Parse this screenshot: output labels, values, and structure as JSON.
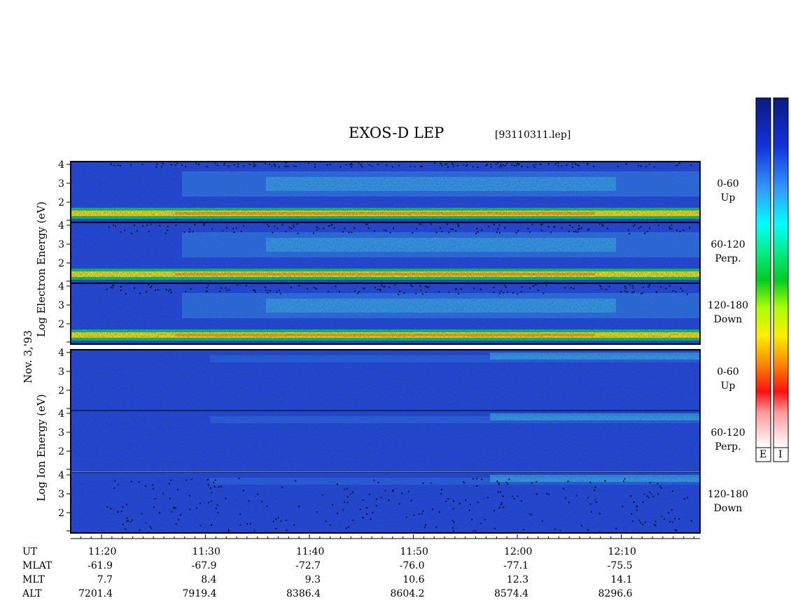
{
  "chart_data": {
    "type": "heatmap",
    "title": "EXOS-D LEP",
    "file": "[93110311.lep]",
    "date_label": "Nov. 3,'93",
    "electron_ylabel": "Log   Electron   Energy  (eV)",
    "ion_ylabel": "Log   Ion   Energy  (eV)",
    "y_ticks": [
      "2",
      "3",
      "4"
    ],
    "panels": [
      {
        "species": "Electron",
        "pitch_range": "0-60",
        "direction": "Up"
      },
      {
        "species": "Electron",
        "pitch_range": "60-120",
        "direction": "Perp."
      },
      {
        "species": "Electron",
        "pitch_range": "120-180",
        "direction": "Down"
      },
      {
        "species": "Ion",
        "pitch_range": "0-60",
        "direction": "Up"
      },
      {
        "species": "Ion",
        "pitch_range": "60-120",
        "direction": "Perp."
      },
      {
        "species": "Ion",
        "pitch_range": "120-180",
        "direction": "Down"
      }
    ],
    "row_labels": [
      "UT",
      "MLAT",
      "MLT",
      "ALT"
    ],
    "columns": [
      {
        "UT": "11:20",
        "MLAT": "-61.9",
        "MLT": "7.7",
        "ALT": "7201.4"
      },
      {
        "UT": "11:30",
        "MLAT": "-67.9",
        "MLT": "8.4",
        "ALT": "7919.4"
      },
      {
        "UT": "11:40",
        "MLAT": "-72.7",
        "MLT": "9.3",
        "ALT": "8386.4"
      },
      {
        "UT": "11:50",
        "MLAT": "-76.0",
        "MLT": "10.6",
        "ALT": "8604.2"
      },
      {
        "UT": "12:00",
        "MLAT": "-77.1",
        "MLT": "12.3",
        "ALT": "8574.4"
      },
      {
        "UT": "12:10",
        "MLAT": "-75.5",
        "MLT": "14.1",
        "ALT": "8296.6"
      }
    ],
    "colorbar_labels": [
      "E",
      "I"
    ]
  }
}
